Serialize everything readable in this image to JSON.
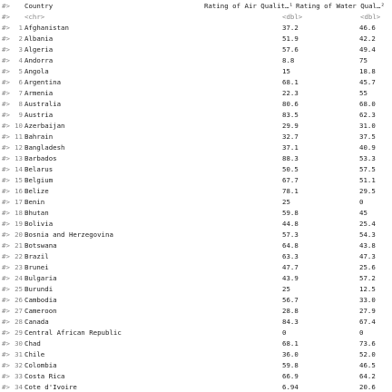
{
  "prompt": "#>",
  "table": {
    "header": [
      "Country",
      "Rating of Air Qualit…¹",
      "Rating of Water Qual…²"
    ],
    "types": [
      "<chr>",
      "<dbl>",
      "<dbl>"
    ],
    "rows": [
      [
        "1",
        "Afghanistan",
        "37.2",
        "46.6"
      ],
      [
        "2",
        "Albania",
        "51.9",
        "42.2"
      ],
      [
        "3",
        "Algeria",
        "57.6",
        "49.4"
      ],
      [
        "4",
        "Andorra",
        "8.8",
        "75"
      ],
      [
        "5",
        "Angola",
        "15",
        "18.8"
      ],
      [
        "6",
        "Argentina",
        "68.1",
        "45.7"
      ],
      [
        "7",
        "Armenia",
        "22.3",
        "55"
      ],
      [
        "8",
        "Australia",
        "80.6",
        "68.0"
      ],
      [
        "9",
        "Austria",
        "83.5",
        "62.3"
      ],
      [
        "10",
        "Azerbaijan",
        "29.9",
        "31.0"
      ],
      [
        "11",
        "Bahrain",
        "32.7",
        "37.5"
      ],
      [
        "12",
        "Bangladesh",
        "37.1",
        "40.9"
      ],
      [
        "13",
        "Barbados",
        "88.3",
        "53.3"
      ],
      [
        "14",
        "Belarus",
        "50.5",
        "57.5"
      ],
      [
        "15",
        "Belgium",
        "67.7",
        "51.1"
      ],
      [
        "16",
        "Belize",
        "78.1",
        "29.5"
      ],
      [
        "17",
        "Benin",
        "25",
        "0"
      ],
      [
        "18",
        "Bhutan",
        "59.8",
        "45"
      ],
      [
        "19",
        "Bolivia",
        "44.8",
        "25.4"
      ],
      [
        "20",
        "Bosnia and Herzegovina",
        "57.3",
        "54.3"
      ],
      [
        "21",
        "Botswana",
        "64.8",
        "43.8"
      ],
      [
        "22",
        "Brazil",
        "63.3",
        "47.3"
      ],
      [
        "23",
        "Brunei",
        "47.7",
        "25.6"
      ],
      [
        "24",
        "Bulgaria",
        "43.9",
        "57.2"
      ],
      [
        "25",
        "Burundi",
        "25",
        "12.5"
      ],
      [
        "26",
        "Cambodia",
        "56.7",
        "33.0"
      ],
      [
        "27",
        "Cameroon",
        "28.8",
        "27.9"
      ],
      [
        "28",
        "Canada",
        "84.3",
        "67.4"
      ],
      [
        "29",
        "Central African Republic",
        "0",
        "0"
      ],
      [
        "30",
        "Chad",
        "68.1",
        "73.6"
      ],
      [
        "31",
        "Chile",
        "36.0",
        "52.0"
      ],
      [
        "32",
        "Colombia",
        "59.8",
        "46.5"
      ],
      [
        "33",
        "Costa Rica",
        "66.9",
        "64.2"
      ],
      [
        "34",
        "Cote d'Ivoire",
        "6.94",
        "20.6"
      ]
    ]
  }
}
